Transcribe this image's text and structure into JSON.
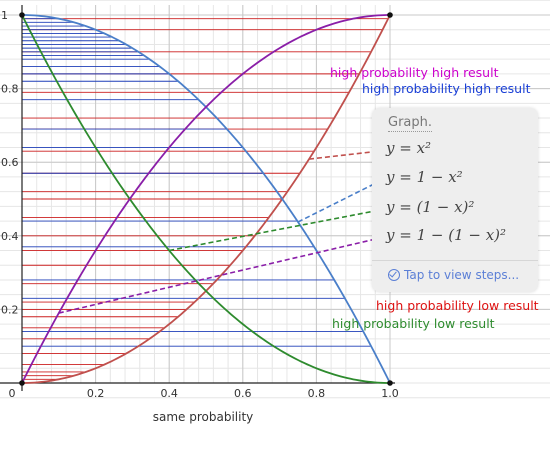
{
  "chart_data": {
    "type": "line",
    "xlabel": "same probability",
    "ylabel": "",
    "xlim": [
      0,
      1
    ],
    "ylim": [
      0,
      1
    ],
    "grid": true,
    "x_ticks": [
      "0",
      "0.2",
      "0.4",
      "0.6",
      "0.8",
      "1.0"
    ],
    "y_ticks": [
      "0.2",
      "0.4",
      "0.6",
      "0.8",
      "1"
    ],
    "series": [
      {
        "formula": "y = x²",
        "color": "#c0504d"
      },
      {
        "formula": "y = 1 − x²",
        "color": "#4a7fc9"
      },
      {
        "formula": "y = (1 − x)²",
        "color": "#2e8b2e"
      },
      {
        "formula": "y = 1 − (1 − x)²",
        "color": "#8a1ea8"
      }
    ],
    "red_lines_y": [
      0.01,
      0.02,
      0.03,
      0.05,
      0.08,
      0.12,
      0.15,
      0.18,
      0.2,
      0.22,
      0.27,
      0.32,
      0.36,
      0.4,
      0.45,
      0.5,
      0.52,
      0.57,
      0.63,
      0.69,
      0.72,
      0.79,
      0.84,
      0.9,
      0.96,
      0.99
    ],
    "blue_lines_y": [
      0.1,
      0.14,
      0.23,
      0.28,
      0.37,
      0.44,
      0.57,
      0.64,
      0.69,
      0.77,
      0.82,
      0.84,
      0.86,
      0.88,
      0.89,
      0.9,
      0.91,
      0.92,
      0.93,
      0.94,
      0.95,
      0.96,
      0.97,
      0.98,
      0.99
    ],
    "annotations": [
      {
        "text": "high probability high result",
        "color": "#cc00cc"
      },
      {
        "text": "high probability high result",
        "color": "#1a3fd6"
      },
      {
        "text": "high probability low result",
        "color": "#dd1111"
      },
      {
        "text": "high probability low result",
        "color": "#2e8b2e"
      }
    ]
  },
  "panel": {
    "title": "Graph.",
    "steps_label": "Tap to view steps...",
    "steps_icon": "check-circle-icon",
    "accent": "#5b7fd6"
  }
}
